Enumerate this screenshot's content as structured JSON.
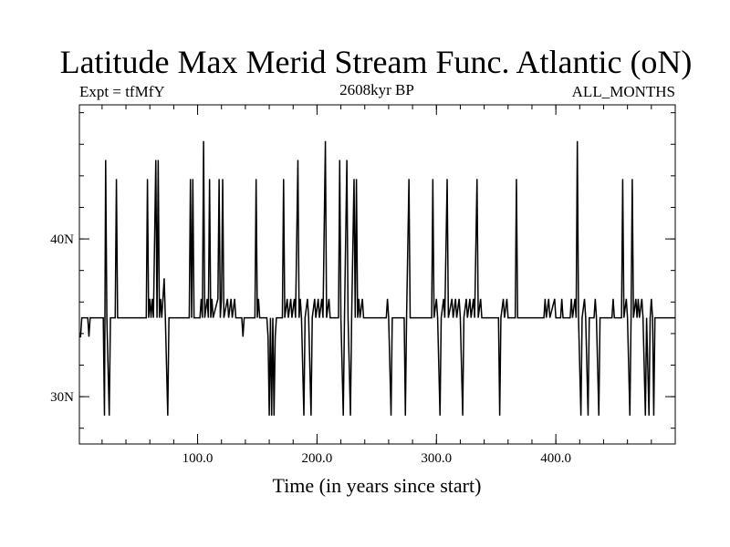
{
  "chart_data": {
    "type": "line",
    "title": "Latitude Max Merid Stream Func. Atlantic (oN)",
    "subtitle_left": "Expt = tfMfY",
    "subtitle_center": "2608kyr BP",
    "subtitle_right": "ALL_MONTHS",
    "xlabel": "Time (in years since start)",
    "ylabel": "",
    "xlim": [
      1,
      500
    ],
    "ylim": [
      27,
      48.5
    ],
    "x_ticks": [
      100,
      200,
      300,
      400
    ],
    "x_tick_labels": [
      "100.0",
      "200.0",
      "300.0",
      "400.0"
    ],
    "y_ticks": [
      30,
      40
    ],
    "y_tick_labels": [
      "30N",
      "40N"
    ],
    "baseline": 35,
    "series": [
      {
        "points": [
          [
            1,
            33.8
          ],
          [
            2,
            33.8
          ],
          [
            3,
            35
          ],
          [
            8,
            35
          ],
          [
            9,
            33.8
          ],
          [
            10,
            35
          ],
          [
            21,
            35
          ],
          [
            22,
            28.8
          ],
          [
            23,
            45
          ],
          [
            24,
            35
          ],
          [
            26,
            28.8
          ],
          [
            27,
            35
          ],
          [
            31,
            35
          ],
          [
            32,
            43.8
          ],
          [
            33,
            35
          ],
          [
            57,
            35
          ],
          [
            58,
            43.8
          ],
          [
            59,
            35
          ],
          [
            60,
            36.2
          ],
          [
            61,
            35
          ],
          [
            62,
            36.2
          ],
          [
            63,
            35
          ],
          [
            65,
            45
          ],
          [
            66,
            35
          ],
          [
            67,
            45
          ],
          [
            68,
            35
          ],
          [
            69,
            36.2
          ],
          [
            70,
            35
          ],
          [
            72,
            37.5
          ],
          [
            73,
            35
          ],
          [
            75,
            28.8
          ],
          [
            76,
            35
          ],
          [
            93,
            35
          ],
          [
            94,
            43.8
          ],
          [
            95,
            35
          ],
          [
            96,
            43.8
          ],
          [
            97,
            35
          ],
          [
            102,
            35
          ],
          [
            103,
            36.2
          ],
          [
            104,
            35
          ],
          [
            105,
            46.2
          ],
          [
            106,
            35
          ],
          [
            108,
            36.2
          ],
          [
            109,
            35
          ],
          [
            110,
            43.8
          ],
          [
            111,
            35
          ],
          [
            112,
            36.2
          ],
          [
            113,
            35
          ],
          [
            117,
            36.2
          ],
          [
            118,
            43.8
          ],
          [
            119,
            35
          ],
          [
            120,
            36.2
          ],
          [
            121,
            43.8
          ],
          [
            122,
            35
          ],
          [
            125,
            36.2
          ],
          [
            126,
            35
          ],
          [
            128,
            36.2
          ],
          [
            129,
            35
          ],
          [
            131,
            36.2
          ],
          [
            132,
            35
          ],
          [
            137,
            35
          ],
          [
            138,
            33.8
          ],
          [
            139,
            35
          ],
          [
            148,
            35
          ],
          [
            149,
            43.8
          ],
          [
            150,
            35
          ],
          [
            151,
            36.2
          ],
          [
            152,
            35
          ],
          [
            158,
            35
          ],
          [
            159,
            33.8
          ],
          [
            160,
            28.8
          ],
          [
            161,
            35
          ],
          [
            162,
            28.8
          ],
          [
            163,
            35
          ],
          [
            164,
            28.8
          ],
          [
            165,
            33.8
          ],
          [
            166,
            35
          ],
          [
            171,
            35
          ],
          [
            172,
            43.8
          ],
          [
            173,
            35
          ],
          [
            175,
            36.2
          ],
          [
            176,
            35
          ],
          [
            178,
            36.2
          ],
          [
            179,
            35
          ],
          [
            181,
            36.2
          ],
          [
            182,
            35
          ],
          [
            184,
            45
          ],
          [
            185,
            35
          ],
          [
            186,
            36.2
          ],
          [
            187,
            35
          ],
          [
            189,
            28.8
          ],
          [
            190,
            35
          ],
          [
            192,
            36.2
          ],
          [
            193,
            35
          ],
          [
            195,
            28.8
          ],
          [
            196,
            35
          ],
          [
            198,
            36.2
          ],
          [
            199,
            35
          ],
          [
            201,
            36.2
          ],
          [
            202,
            35
          ],
          [
            204,
            36.2
          ],
          [
            205,
            35
          ],
          [
            207,
            46.2
          ],
          [
            208,
            35
          ],
          [
            210,
            36.2
          ],
          [
            211,
            35
          ],
          [
            218,
            35
          ],
          [
            219,
            45
          ],
          [
            220,
            35
          ],
          [
            222,
            28.8
          ],
          [
            223,
            35
          ],
          [
            225,
            45
          ],
          [
            226,
            35
          ],
          [
            228,
            28.8
          ],
          [
            229,
            35
          ],
          [
            231,
            43.8
          ],
          [
            232,
            35
          ],
          [
            233,
            43.8
          ],
          [
            234,
            35
          ],
          [
            235,
            36.2
          ],
          [
            236,
            35
          ],
          [
            238,
            36.2
          ],
          [
            239,
            35
          ],
          [
            258,
            35
          ],
          [
            259,
            36.2
          ],
          [
            260,
            35
          ],
          [
            262,
            28.8
          ],
          [
            263,
            35
          ],
          [
            273,
            35
          ],
          [
            274,
            28.8
          ],
          [
            275,
            35
          ],
          [
            277,
            43.8
          ],
          [
            278,
            35
          ],
          [
            296,
            35
          ],
          [
            297,
            43.8
          ],
          [
            298,
            35
          ],
          [
            300,
            36.2
          ],
          [
            301,
            35
          ],
          [
            303,
            28.8
          ],
          [
            304,
            35
          ],
          [
            306,
            36.2
          ],
          [
            307,
            35
          ],
          [
            309,
            43.8
          ],
          [
            310,
            35
          ],
          [
            313,
            36.2
          ],
          [
            314,
            35
          ],
          [
            316,
            36.2
          ],
          [
            317,
            35
          ],
          [
            319,
            36.2
          ],
          [
            320,
            35
          ],
          [
            322,
            28.8
          ],
          [
            323,
            35
          ],
          [
            325,
            36.2
          ],
          [
            326,
            35
          ],
          [
            328,
            36.2
          ],
          [
            329,
            35
          ],
          [
            331,
            36.2
          ],
          [
            332,
            35
          ],
          [
            334,
            43.8
          ],
          [
            335,
            35
          ],
          [
            337,
            36.2
          ],
          [
            338,
            35
          ],
          [
            352,
            35
          ],
          [
            353,
            28.8
          ],
          [
            354,
            35
          ],
          [
            356,
            36.2
          ],
          [
            357,
            35
          ],
          [
            359,
            36.2
          ],
          [
            360,
            35
          ],
          [
            366,
            35
          ],
          [
            367,
            43.8
          ],
          [
            368,
            35
          ],
          [
            390,
            35
          ],
          [
            391,
            36.2
          ],
          [
            392,
            35
          ],
          [
            394,
            36.2
          ],
          [
            395,
            35
          ],
          [
            399,
            36.2
          ],
          [
            400,
            35
          ],
          [
            404,
            35
          ],
          [
            405,
            36.2
          ],
          [
            406,
            35
          ],
          [
            412,
            35
          ],
          [
            413,
            36.2
          ],
          [
            414,
            35
          ],
          [
            416,
            36.2
          ],
          [
            417,
            35
          ],
          [
            418,
            46.2
          ],
          [
            419,
            35
          ],
          [
            421,
            28.8
          ],
          [
            422,
            35
          ],
          [
            424,
            36.2
          ],
          [
            425,
            35
          ],
          [
            427,
            28.8
          ],
          [
            428,
            35
          ],
          [
            432,
            35
          ],
          [
            433,
            36.2
          ],
          [
            434,
            35
          ],
          [
            436,
            28.8
          ],
          [
            437,
            35
          ],
          [
            447,
            35
          ],
          [
            448,
            36.2
          ],
          [
            449,
            35
          ],
          [
            455,
            35
          ],
          [
            456,
            43.8
          ],
          [
            457,
            35
          ],
          [
            459,
            36.2
          ],
          [
            460,
            35
          ],
          [
            462,
            28.8
          ],
          [
            463,
            35
          ],
          [
            464,
            43.8
          ],
          [
            465,
            35
          ],
          [
            467,
            36.2
          ],
          [
            468,
            35
          ],
          [
            469,
            36.2
          ],
          [
            470,
            35
          ],
          [
            472,
            36.2
          ],
          [
            473,
            35
          ],
          [
            475,
            28.8
          ],
          [
            476,
            35
          ],
          [
            478,
            28.8
          ],
          [
            479,
            35
          ],
          [
            480,
            36.2
          ],
          [
            481,
            35
          ],
          [
            482,
            28.8
          ],
          [
            483,
            35
          ],
          [
            500,
            35
          ]
        ]
      }
    ]
  }
}
